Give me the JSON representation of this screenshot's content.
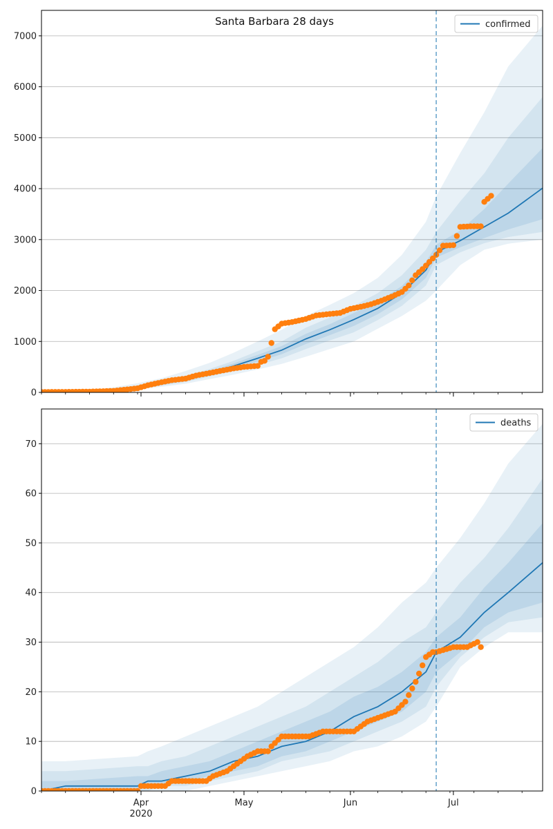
{
  "title": "Santa Barbara 28 days",
  "colors": {
    "model": "#1f77b4",
    "observed": "#ff7f0e",
    "grid": "#b0b0b0",
    "band": "#1f77b4"
  },
  "chart_data": [
    {
      "type": "line",
      "legend": "confirmed",
      "legend_position": "top-right",
      "grid": "horizontal",
      "xlim": [
        "2020-03-03",
        "2020-07-27"
      ],
      "ylim": [
        0,
        7500
      ],
      "yticks": [
        0,
        1000,
        2000,
        3000,
        4000,
        5000,
        6000,
        7000
      ],
      "forecast_start": "2020-06-26",
      "model": {
        "dates": [
          "2020-03-03",
          "2020-03-17",
          "2020-03-24",
          "2020-03-31",
          "2020-04-07",
          "2020-04-14",
          "2020-04-21",
          "2020-04-28",
          "2020-05-05",
          "2020-05-12",
          "2020-05-19",
          "2020-05-26",
          "2020-06-02",
          "2020-06-09",
          "2020-06-16",
          "2020-06-23",
          "2020-06-26",
          "2020-07-03",
          "2020-07-10",
          "2020-07-17",
          "2020-07-27"
        ],
        "values": [
          5,
          20,
          50,
          100,
          170,
          260,
          380,
          520,
          670,
          830,
          1050,
          1230,
          1430,
          1650,
          1950,
          2400,
          2750,
          2980,
          3250,
          3520,
          4010
        ],
        "bands": [
          {
            "level": "outer",
            "lower": [
              0,
              5,
              20,
              60,
              110,
              170,
              260,
              350,
              450,
              560,
              700,
              850,
              1000,
              1250,
              1500,
              1800,
              2000,
              2500,
              2800,
              2920,
              3000
            ],
            "upper": [
              20,
              40,
              100,
              180,
              280,
              420,
              580,
              780,
              1000,
              1230,
              1500,
              1720,
              1950,
              2250,
              2700,
              3350,
              3850,
              4700,
              5500,
              6400,
              7200
            ]
          },
          {
            "level": "middle",
            "lower": [
              2,
              10,
              30,
              75,
              135,
              205,
              310,
              420,
              540,
              670,
              850,
              1020,
              1180,
              1420,
              1700,
              2100,
              2500,
              2750,
              2930,
              3050,
              3150
            ],
            "upper": [
              12,
              32,
              75,
              140,
              220,
              330,
              460,
              620,
              810,
              1000,
              1270,
              1470,
              1700,
              1950,
              2300,
              2800,
              3150,
              3750,
              4300,
              5000,
              5800
            ]
          },
          {
            "level": "inner",
            "lower": [
              4,
              15,
              40,
              88,
              152,
              232,
              345,
              470,
              605,
              750,
              950,
              1125,
              1305,
              1535,
              1825,
              2250,
              2650,
              2850,
              3030,
              3200,
              3400
            ],
            "upper": [
              8,
              26,
              62,
              115,
              190,
              290,
              415,
              570,
              735,
              910,
              1150,
              1340,
              1560,
              1775,
              2090,
              2560,
              2900,
              3180,
              3600,
              4100,
              4800
            ]
          }
        ]
      },
      "observed": {
        "dates": [
          "2020-03-03",
          "2020-03-10",
          "2020-03-17",
          "2020-03-24",
          "2020-03-31",
          "2020-04-03",
          "2020-04-07",
          "2020-04-10",
          "2020-04-14",
          "2020-04-17",
          "2020-04-21",
          "2020-04-24",
          "2020-04-28",
          "2020-05-01",
          "2020-05-05",
          "2020-05-06",
          "2020-05-07",
          "2020-05-08",
          "2020-05-10",
          "2020-05-12",
          "2020-05-15",
          "2020-05-19",
          "2020-05-22",
          "2020-05-26",
          "2020-05-29",
          "2020-06-01",
          "2020-06-04",
          "2020-06-07",
          "2020-06-10",
          "2020-06-13",
          "2020-06-16",
          "2020-06-18",
          "2020-06-20",
          "2020-06-22",
          "2020-06-24",
          "2020-06-26",
          "2020-06-28",
          "2020-07-01",
          "2020-07-03",
          "2020-07-06",
          "2020-07-09",
          "2020-07-10",
          "2020-07-11",
          "2020-07-12"
        ],
        "values": [
          8,
          10,
          15,
          30,
          80,
          140,
          200,
          240,
          270,
          330,
          380,
          420,
          470,
          500,
          520,
          600,
          620,
          700,
          1240,
          1350,
          1380,
          1440,
          1510,
          1540,
          1560,
          1640,
          1680,
          1730,
          1800,
          1880,
          1970,
          2100,
          2300,
          2420,
          2560,
          2700,
          2880,
          2890,
          3250,
          3260,
          3260,
          3740,
          3800,
          3860
        ]
      }
    },
    {
      "type": "line",
      "legend": "deaths",
      "legend_position": "top-right",
      "grid": "horizontal",
      "xlim": [
        "2020-03-03",
        "2020-07-27"
      ],
      "ylim": [
        0,
        77
      ],
      "yticks": [
        0,
        10,
        20,
        30,
        40,
        50,
        60,
        70
      ],
      "forecast_start": "2020-06-26",
      "model": {
        "dates": [
          "2020-03-03",
          "2020-03-10",
          "2020-03-31",
          "2020-04-03",
          "2020-04-07",
          "2020-04-14",
          "2020-04-21",
          "2020-04-28",
          "2020-05-05",
          "2020-05-12",
          "2020-05-19",
          "2020-05-26",
          "2020-06-02",
          "2020-06-09",
          "2020-06-16",
          "2020-06-23",
          "2020-06-26",
          "2020-07-03",
          "2020-07-10",
          "2020-07-17",
          "2020-07-27"
        ],
        "values": [
          0,
          1,
          1,
          2,
          2,
          3,
          4,
          6,
          7,
          9,
          10,
          12,
          15,
          17,
          20,
          24,
          28,
          31,
          36,
          40,
          46
        ],
        "bands": [
          {
            "level": "outer",
            "lower": [
              0,
              0,
              0,
              0,
              0,
              0,
              1,
              2,
              3,
              4,
              5,
              6,
              8,
              9,
              11,
              14,
              17,
              25,
              29,
              32,
              32
            ],
            "upper": [
              6,
              6,
              7,
              8,
              9,
              11,
              13,
              15,
              17,
              20,
              23,
              26,
              29,
              33,
              38,
              42,
              45,
              51,
              58,
              66,
              74
            ]
          },
          {
            "level": "middle",
            "lower": [
              0,
              0,
              0,
              0,
              1,
              1,
              2,
              3,
              4,
              6,
              7,
              8,
              10,
              12,
              14,
              17,
              21,
              27,
              31,
              34,
              35
            ],
            "upper": [
              4,
              4,
              5,
              5,
              6,
              7,
              9,
              11,
              13,
              15,
              17,
              20,
              23,
              26,
              30,
              33,
              36,
              42,
              47,
              53,
              63
            ]
          },
          {
            "level": "inner",
            "lower": [
              0,
              0,
              0,
              1,
              1,
              2,
              3,
              4,
              5,
              7,
              8,
              10,
              12,
              14,
              16,
              20,
              24,
              28,
              33,
              36,
              38
            ],
            "upper": [
              2,
              2,
              3,
              3,
              4,
              5,
              6,
              8,
              10,
              12,
              14,
              16,
              19,
              21,
              24,
              28,
              31,
              35,
              41,
              46,
              54
            ]
          }
        ]
      },
      "observed": {
        "dates": [
          "2020-03-03",
          "2020-03-15",
          "2020-03-31",
          "2020-04-01",
          "2020-04-08",
          "2020-04-10",
          "2020-04-20",
          "2020-04-22",
          "2020-04-26",
          "2020-04-28",
          "2020-05-02",
          "2020-05-05",
          "2020-05-08",
          "2020-05-09",
          "2020-05-12",
          "2020-05-20",
          "2020-05-24",
          "2020-06-02",
          "2020-06-06",
          "2020-06-10",
          "2020-06-14",
          "2020-06-17",
          "2020-06-20",
          "2020-06-23",
          "2020-06-25",
          "2020-06-26",
          "2020-07-01",
          "2020-07-05",
          "2020-07-08",
          "2020-07-09"
        ],
        "values": [
          0,
          0,
          0,
          1,
          1,
          2,
          2,
          3,
          4,
          5,
          7,
          8,
          8,
          9,
          11,
          11,
          12,
          12,
          14,
          15,
          16,
          18,
          22,
          27,
          28,
          28,
          29,
          29,
          30,
          29
        ]
      }
    }
  ],
  "x_axis": {
    "tick_labels": [
      "Apr",
      "May",
      "Jun",
      "Jul"
    ],
    "tick_dates": [
      "2020-04-01",
      "2020-05-01",
      "2020-06-01",
      "2020-07-01"
    ],
    "year_label": "2020"
  }
}
